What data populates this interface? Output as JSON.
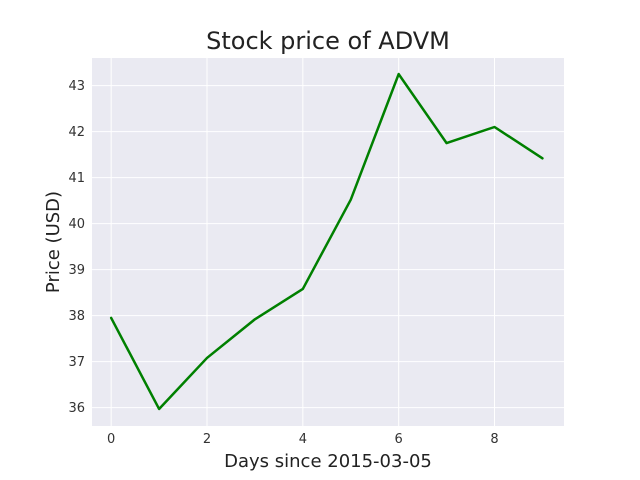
{
  "chart_data": {
    "type": "line",
    "title": "Stock price of ADVM",
    "xlabel": "Days since 2015-03-05",
    "ylabel": "Price (USD)",
    "x": [
      0,
      1,
      2,
      3,
      4,
      5,
      6,
      7,
      8,
      9
    ],
    "series": [
      {
        "values": [
          37.95,
          35.97,
          37.08,
          37.92,
          38.58,
          40.52,
          43.25,
          41.75,
          42.1,
          41.42
        ]
      }
    ],
    "xlim": [
      -0.4,
      9.45
    ],
    "ylim": [
      35.6,
      43.6
    ],
    "xticks": [
      0,
      2,
      4,
      6,
      8
    ],
    "yticks": [
      36,
      37,
      38,
      39,
      40,
      41,
      42,
      43
    ],
    "grid": true,
    "style": {
      "line_color": "#008000",
      "plot_background": "#eaeaf2",
      "grid_color": "#ffffff"
    }
  }
}
